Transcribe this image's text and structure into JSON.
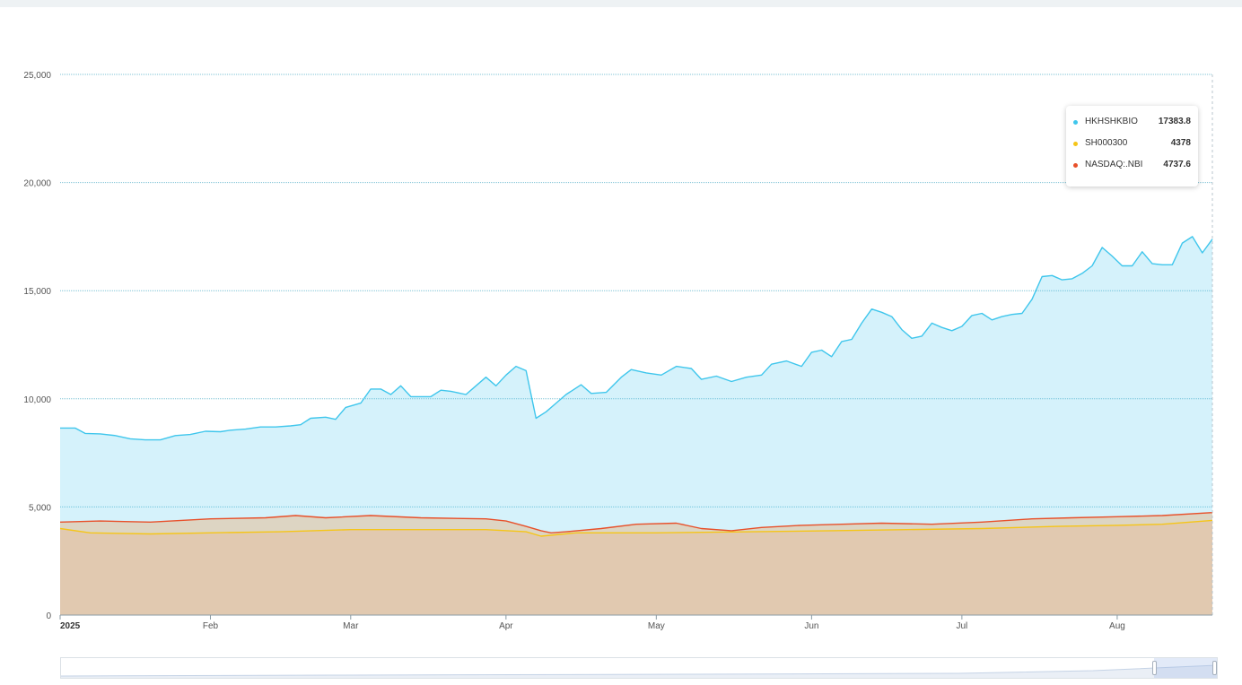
{
  "colors": {
    "HKHSHKBIO": "#3fc6ec",
    "SH000300": "#f5c518",
    "NASDAQ:.NBI": "#e8502a"
  },
  "chart_data": {
    "type": "area",
    "ylim": [
      0,
      25000
    ],
    "xlim": [
      "2025-01-02",
      "2025-08-20"
    ],
    "y_ticks": [
      "0",
      "5,000",
      "10,000",
      "15,000",
      "20,000",
      "25,000"
    ],
    "x_ticks": [
      {
        "label": "2025",
        "date": "2025-01-02"
      },
      {
        "label": "Feb",
        "date": "2025-02-01"
      },
      {
        "label": "Mar",
        "date": "2025-03-01"
      },
      {
        "label": "Apr",
        "date": "2025-04-01"
      },
      {
        "label": "May",
        "date": "2025-05-01"
      },
      {
        "label": "Jun",
        "date": "2025-06-01"
      },
      {
        "label": "Jul",
        "date": "2025-07-01"
      },
      {
        "label": "Aug",
        "date": "2025-08-01"
      }
    ],
    "grid": true,
    "series": [
      {
        "name": "HKHSHKBIO",
        "points": [
          [
            "2025-01-02",
            8650
          ],
          [
            "2025-01-05",
            8650
          ],
          [
            "2025-01-07",
            8400
          ],
          [
            "2025-01-10",
            8380
          ],
          [
            "2025-01-13",
            8300
          ],
          [
            "2025-01-16",
            8150
          ],
          [
            "2025-01-19",
            8100
          ],
          [
            "2025-01-22",
            8100
          ],
          [
            "2025-01-25",
            8300
          ],
          [
            "2025-01-28",
            8350
          ],
          [
            "2025-01-31",
            8500
          ],
          [
            "2025-02-03",
            8480
          ],
          [
            "2025-02-05",
            8550
          ],
          [
            "2025-02-08",
            8600
          ],
          [
            "2025-02-11",
            8700
          ],
          [
            "2025-02-14",
            8700
          ],
          [
            "2025-02-17",
            8750
          ],
          [
            "2025-02-19",
            8800
          ],
          [
            "2025-02-21",
            9100
          ],
          [
            "2025-02-24",
            9150
          ],
          [
            "2025-02-26",
            9050
          ],
          [
            "2025-02-28",
            9600
          ],
          [
            "2025-03-03",
            9800
          ],
          [
            "2025-03-05",
            10450
          ],
          [
            "2025-03-07",
            10450
          ],
          [
            "2025-03-09",
            10200
          ],
          [
            "2025-03-11",
            10600
          ],
          [
            "2025-03-13",
            10100
          ],
          [
            "2025-03-17",
            10100
          ],
          [
            "2025-03-19",
            10400
          ],
          [
            "2025-03-21",
            10350
          ],
          [
            "2025-03-24",
            10200
          ],
          [
            "2025-03-26",
            10600
          ],
          [
            "2025-03-28",
            11000
          ],
          [
            "2025-03-30",
            10600
          ],
          [
            "2025-04-01",
            11100
          ],
          [
            "2025-04-03",
            11500
          ],
          [
            "2025-04-05",
            11300
          ],
          [
            "2025-04-07",
            9100
          ],
          [
            "2025-04-09",
            9400
          ],
          [
            "2025-04-11",
            9800
          ],
          [
            "2025-04-13",
            10200
          ],
          [
            "2025-04-16",
            10650
          ],
          [
            "2025-04-18",
            10250
          ],
          [
            "2025-04-21",
            10300
          ],
          [
            "2025-04-24",
            11000
          ],
          [
            "2025-04-26",
            11350
          ],
          [
            "2025-04-29",
            11200
          ],
          [
            "2025-05-02",
            11100
          ],
          [
            "2025-05-05",
            11500
          ],
          [
            "2025-05-08",
            11400
          ],
          [
            "2025-05-10",
            10900
          ],
          [
            "2025-05-13",
            11050
          ],
          [
            "2025-05-16",
            10800
          ],
          [
            "2025-05-19",
            11000
          ],
          [
            "2025-05-22",
            11100
          ],
          [
            "2025-05-24",
            11600
          ],
          [
            "2025-05-27",
            11750
          ],
          [
            "2025-05-30",
            11500
          ],
          [
            "2025-06-01",
            12150
          ],
          [
            "2025-06-03",
            12250
          ],
          [
            "2025-06-05",
            11950
          ],
          [
            "2025-06-07",
            12650
          ],
          [
            "2025-06-09",
            12750
          ],
          [
            "2025-06-11",
            13500
          ],
          [
            "2025-06-13",
            14150
          ],
          [
            "2025-06-15",
            14000
          ],
          [
            "2025-06-17",
            13800
          ],
          [
            "2025-06-19",
            13200
          ],
          [
            "2025-06-21",
            12800
          ],
          [
            "2025-06-23",
            12900
          ],
          [
            "2025-06-25",
            13500
          ],
          [
            "2025-06-27",
            13300
          ],
          [
            "2025-06-29",
            13150
          ],
          [
            "2025-07-01",
            13350
          ],
          [
            "2025-07-03",
            13850
          ],
          [
            "2025-07-05",
            13950
          ],
          [
            "2025-07-07",
            13650
          ],
          [
            "2025-07-09",
            13800
          ],
          [
            "2025-07-11",
            13900
          ],
          [
            "2025-07-13",
            13950
          ],
          [
            "2025-07-15",
            14600
          ],
          [
            "2025-07-17",
            15650
          ],
          [
            "2025-07-19",
            15700
          ],
          [
            "2025-07-21",
            15500
          ],
          [
            "2025-07-23",
            15550
          ],
          [
            "2025-07-25",
            15800
          ],
          [
            "2025-07-27",
            16150
          ],
          [
            "2025-07-29",
            17000
          ],
          [
            "2025-07-31",
            16600
          ],
          [
            "2025-08-02",
            16150
          ],
          [
            "2025-08-04",
            16150
          ],
          [
            "2025-08-06",
            16800
          ],
          [
            "2025-08-08",
            16250
          ],
          [
            "2025-08-10",
            16200
          ],
          [
            "2025-08-12",
            16200
          ],
          [
            "2025-08-14",
            17200
          ],
          [
            "2025-08-16",
            17500
          ],
          [
            "2025-08-18",
            16750
          ],
          [
            "2025-08-20",
            17383.8
          ]
        ]
      },
      {
        "name": "NASDAQ:.NBI",
        "points": [
          [
            "2025-01-02",
            4300
          ],
          [
            "2025-01-10",
            4350
          ],
          [
            "2025-01-20",
            4300
          ],
          [
            "2025-02-01",
            4450
          ],
          [
            "2025-02-12",
            4500
          ],
          [
            "2025-02-18",
            4600
          ],
          [
            "2025-02-24",
            4500
          ],
          [
            "2025-03-05",
            4600
          ],
          [
            "2025-03-15",
            4500
          ],
          [
            "2025-03-28",
            4450
          ],
          [
            "2025-04-01",
            4350
          ],
          [
            "2025-04-05",
            4100
          ],
          [
            "2025-04-08",
            3900
          ],
          [
            "2025-04-10",
            3800
          ],
          [
            "2025-04-13",
            3850
          ],
          [
            "2025-04-20",
            4000
          ],
          [
            "2025-04-27",
            4200
          ],
          [
            "2025-05-05",
            4250
          ],
          [
            "2025-05-10",
            4000
          ],
          [
            "2025-05-16",
            3900
          ],
          [
            "2025-05-22",
            4050
          ],
          [
            "2025-05-30",
            4150
          ],
          [
            "2025-06-07",
            4200
          ],
          [
            "2025-06-15",
            4250
          ],
          [
            "2025-06-25",
            4200
          ],
          [
            "2025-07-05",
            4300
          ],
          [
            "2025-07-15",
            4450
          ],
          [
            "2025-07-23",
            4500
          ],
          [
            "2025-08-01",
            4550
          ],
          [
            "2025-08-10",
            4600
          ],
          [
            "2025-08-20",
            4737.6
          ]
        ]
      },
      {
        "name": "SH000300",
        "points": [
          [
            "2025-01-02",
            4000
          ],
          [
            "2025-01-08",
            3800
          ],
          [
            "2025-01-20",
            3750
          ],
          [
            "2025-02-01",
            3800
          ],
          [
            "2025-02-15",
            3850
          ],
          [
            "2025-03-01",
            3950
          ],
          [
            "2025-03-15",
            3950
          ],
          [
            "2025-03-28",
            3950
          ],
          [
            "2025-04-05",
            3850
          ],
          [
            "2025-04-08",
            3650
          ],
          [
            "2025-04-15",
            3800
          ],
          [
            "2025-05-01",
            3800
          ],
          [
            "2025-05-20",
            3850
          ],
          [
            "2025-06-05",
            3900
          ],
          [
            "2025-06-20",
            3950
          ],
          [
            "2025-07-05",
            4000
          ],
          [
            "2025-07-20",
            4100
          ],
          [
            "2025-08-01",
            4150
          ],
          [
            "2025-08-10",
            4200
          ],
          [
            "2025-08-20",
            4378
          ]
        ]
      }
    ]
  },
  "tooltip": {
    "rows": [
      {
        "name": "HKHSHKBIO",
        "value": "17383.8",
        "color": "#3fc6ec"
      },
      {
        "name": "SH000300",
        "value": "4378",
        "color": "#f5c518"
      },
      {
        "name": "NASDAQ:.NBI",
        "value": "4737.6",
        "color": "#e8502a"
      }
    ]
  }
}
